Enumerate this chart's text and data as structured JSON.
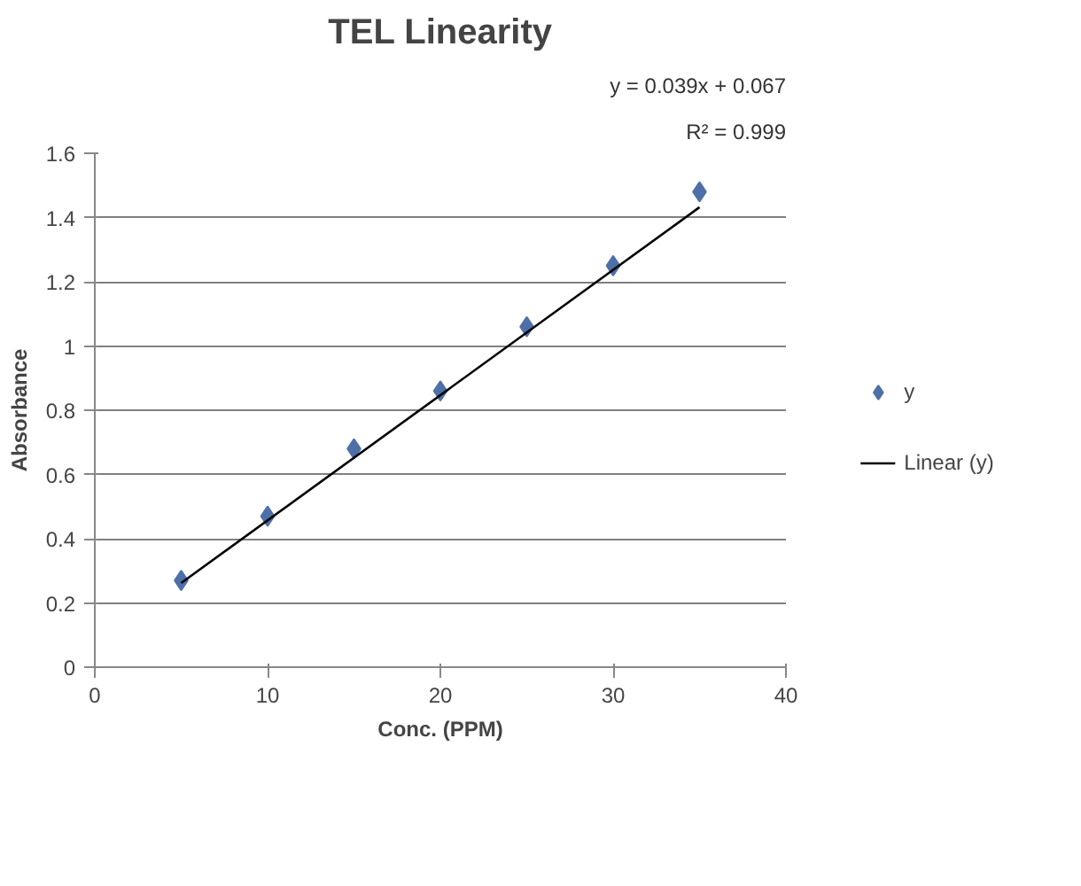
{
  "chart_data": {
    "type": "scatter",
    "title": "TEL Linearity",
    "xlabel": "Conc. (PPM)",
    "ylabel": "Absorbance",
    "x": [
      5,
      10,
      15,
      20,
      25,
      30,
      35
    ],
    "series": [
      {
        "name": "y",
        "color": "#4f6fa8",
        "marker": "diamond",
        "values": [
          0.27,
          0.47,
          0.68,
          0.86,
          1.06,
          1.25,
          1.48
        ]
      },
      {
        "name": "Linear (y)",
        "type": "line",
        "color": "#000000",
        "x": [
          5,
          35
        ],
        "values": [
          0.262,
          1.432
        ]
      }
    ],
    "xlim": [
      0,
      40
    ],
    "xticks": [
      0,
      10,
      20,
      30,
      40
    ],
    "ylim": [
      0,
      1.6
    ],
    "yticks": [
      0,
      0.2,
      0.4,
      0.6,
      0.8,
      1,
      1.2,
      1.4,
      1.6
    ],
    "grid": "y",
    "legend": "right",
    "annotations": [
      "y = 0.039x + 0.067",
      "R² = 0.999"
    ]
  }
}
